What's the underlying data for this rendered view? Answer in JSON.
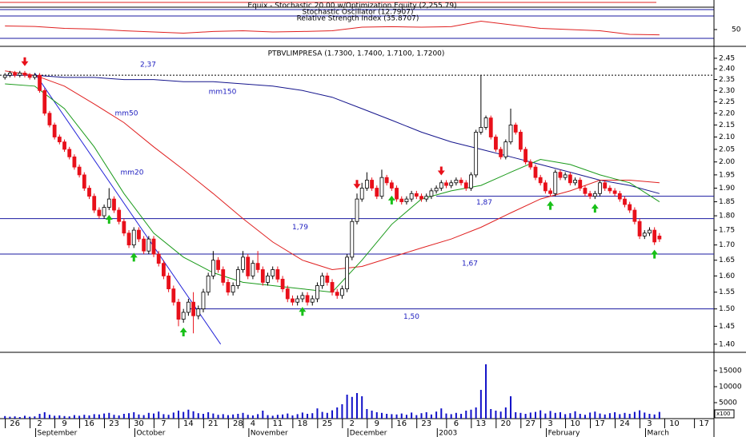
{
  "chart_data": {
    "type": "candlestick",
    "title": "PTBVLIMPRESA (1.7300, 1.7400, 1.7100, 1.7200)",
    "log_scale": true,
    "up_color": "#ffffff",
    "down_color": "#e8101a",
    "ylim": [
      1.38,
      2.5
    ],
    "yticks": [
      {
        "value": 1.4,
        "label": "1.40"
      },
      1.45,
      {
        "value": 1.5,
        "label": "1.50"
      },
      1.55,
      {
        "value": 1.6,
        "label": "1.60"
      },
      1.65,
      {
        "value": 1.7,
        "label": "1.70"
      },
      1.75,
      {
        "value": 1.8,
        "label": "1.80"
      },
      1.85,
      {
        "value": 1.9,
        "label": "1.90"
      },
      1.95,
      {
        "value": 2,
        "label": "2.00"
      },
      2.05,
      {
        "value": 2.1,
        "label": "2.10"
      },
      2.15,
      {
        "value": 2.2,
        "label": "2.20"
      },
      2.25,
      {
        "value": 2.3,
        "label": "2.30"
      },
      2.35,
      {
        "value": 2.4,
        "label": "2.40"
      },
      2.45
    ],
    "xlim": [
      -1,
      143
    ],
    "xticks": [
      {
        "value": 2,
        "label": "26"
      },
      {
        "value": 7,
        "label": "2"
      },
      {
        "value": 12,
        "label": "9"
      },
      {
        "value": 17,
        "label": "16"
      },
      {
        "value": 22,
        "label": "23"
      },
      {
        "value": 27,
        "label": "30"
      },
      {
        "value": 32,
        "label": "7"
      },
      {
        "value": 37,
        "label": "14"
      },
      {
        "value": 42,
        "label": "21"
      },
      {
        "value": 47,
        "label": "28"
      },
      {
        "value": 50,
        "label": "4"
      },
      {
        "value": 55,
        "label": "11"
      },
      {
        "value": 60,
        "label": "18"
      },
      {
        "value": 65,
        "label": "25"
      },
      {
        "value": 70,
        "label": "2"
      },
      {
        "value": 75,
        "label": "9"
      },
      {
        "value": 80,
        "label": "16"
      },
      {
        "value": 85,
        "label": "23"
      },
      {
        "value": 91,
        "label": "6"
      },
      {
        "value": 96,
        "label": "13"
      },
      {
        "value": 101,
        "label": "20"
      },
      {
        "value": 106,
        "label": "27"
      },
      {
        "value": 110,
        "label": "3"
      },
      {
        "value": 115,
        "label": "10"
      },
      {
        "value": 120,
        "label": "17"
      },
      {
        "value": 125,
        "label": "24"
      },
      {
        "value": 130,
        "label": "3"
      },
      {
        "value": 135,
        "label": "10"
      },
      {
        "value": 141,
        "label": "17"
      }
    ],
    "months": [
      {
        "value": 7,
        "label": "September"
      },
      {
        "value": 27,
        "label": "October"
      },
      {
        "value": 50,
        "label": "November"
      },
      {
        "value": 70,
        "label": "December"
      },
      {
        "value": 88,
        "label": "2003"
      },
      {
        "value": 110,
        "label": "February"
      },
      {
        "value": 130,
        "label": "March"
      }
    ],
    "candles": [
      [
        2.36,
        2.38,
        2.35,
        2.37
      ],
      [
        2.37,
        2.39,
        2.36,
        2.38
      ],
      [
        2.38,
        2.39,
        2.36,
        2.37
      ],
      [
        2.37,
        2.39,
        2.36,
        2.38
      ],
      [
        2.38,
        2.39,
        2.36,
        2.37
      ],
      [
        2.37,
        2.38,
        2.35,
        2.36
      ],
      [
        2.36,
        2.38,
        2.35,
        2.37
      ],
      [
        2.37,
        2.38,
        2.29,
        2.3
      ],
      [
        2.3,
        2.31,
        2.19,
        2.2
      ],
      [
        2.2,
        2.21,
        2.14,
        2.15
      ],
      [
        2.15,
        2.16,
        2.09,
        2.1
      ],
      [
        2.1,
        2.11,
        2.07,
        2.08
      ],
      [
        2.08,
        2.09,
        2.04,
        2.05
      ],
      [
        2.05,
        2.06,
        2.01,
        2.02
      ],
      [
        2.02,
        2.03,
        1.97,
        1.98
      ],
      [
        1.98,
        1.99,
        1.94,
        1.95
      ],
      [
        1.95,
        1.96,
        1.89,
        1.9
      ],
      [
        1.9,
        1.91,
        1.86,
        1.87
      ],
      [
        1.87,
        1.88,
        1.81,
        1.82
      ],
      [
        1.82,
        1.83,
        1.79,
        1.8
      ],
      [
        1.8,
        1.84,
        1.79,
        1.83
      ],
      [
        1.83,
        1.9,
        1.82,
        1.86
      ],
      [
        1.86,
        1.87,
        1.81,
        1.82
      ],
      [
        1.82,
        1.83,
        1.77,
        1.78
      ],
      [
        1.78,
        1.79,
        1.73,
        1.74
      ],
      [
        1.74,
        1.75,
        1.69,
        1.7
      ],
      [
        1.7,
        1.76,
        1.69,
        1.75
      ],
      [
        1.75,
        1.76,
        1.71,
        1.72
      ],
      [
        1.72,
        1.73,
        1.67,
        1.68
      ],
      [
        1.68,
        1.73,
        1.67,
        1.72
      ],
      [
        1.72,
        1.73,
        1.66,
        1.67
      ],
      [
        1.67,
        1.68,
        1.63,
        1.64
      ],
      [
        1.64,
        1.65,
        1.59,
        1.6
      ],
      [
        1.6,
        1.61,
        1.55,
        1.56
      ],
      [
        1.56,
        1.57,
        1.51,
        1.52
      ],
      [
        1.52,
        1.53,
        1.45,
        1.47
      ],
      [
        1.47,
        1.5,
        1.46,
        1.49
      ],
      [
        1.49,
        1.53,
        1.48,
        1.52
      ],
      [
        1.52,
        1.55,
        1.43,
        1.48
      ],
      [
        1.48,
        1.51,
        1.47,
        1.5
      ],
      [
        1.5,
        1.56,
        1.49,
        1.55
      ],
      [
        1.55,
        1.61,
        1.54,
        1.6
      ],
      [
        1.6,
        1.68,
        1.59,
        1.65
      ],
      [
        1.65,
        1.66,
        1.61,
        1.62
      ],
      [
        1.62,
        1.63,
        1.57,
        1.58
      ],
      [
        1.58,
        1.59,
        1.54,
        1.55
      ],
      [
        1.55,
        1.58,
        1.54,
        1.57
      ],
      [
        1.57,
        1.63,
        1.56,
        1.62
      ],
      [
        1.62,
        1.68,
        1.61,
        1.66
      ],
      [
        1.66,
        1.67,
        1.59,
        1.6
      ],
      [
        1.6,
        1.65,
        1.59,
        1.64
      ],
      [
        1.64,
        1.68,
        1.61,
        1.62
      ],
      [
        1.62,
        1.63,
        1.57,
        1.58
      ],
      [
        1.58,
        1.61,
        1.57,
        1.6
      ],
      [
        1.6,
        1.63,
        1.59,
        1.62
      ],
      [
        1.62,
        1.63,
        1.58,
        1.59
      ],
      [
        1.59,
        1.6,
        1.55,
        1.56
      ],
      [
        1.56,
        1.57,
        1.52,
        1.53
      ],
      [
        1.53,
        1.54,
        1.51,
        1.52
      ],
      [
        1.52,
        1.54,
        1.51,
        1.53
      ],
      [
        1.53,
        1.55,
        1.52,
        1.54
      ],
      [
        1.54,
        1.55,
        1.51,
        1.52
      ],
      [
        1.52,
        1.54,
        1.51,
        1.53
      ],
      [
        1.53,
        1.58,
        1.52,
        1.57
      ],
      [
        1.57,
        1.61,
        1.56,
        1.6
      ],
      [
        1.6,
        1.61,
        1.57,
        1.58
      ],
      [
        1.58,
        1.59,
        1.54,
        1.55
      ],
      [
        1.55,
        1.56,
        1.53,
        1.54
      ],
      [
        1.54,
        1.57,
        1.53,
        1.56
      ],
      [
        1.56,
        1.67,
        1.55,
        1.66
      ],
      [
        1.66,
        1.79,
        1.65,
        1.78
      ],
      [
        1.78,
        1.88,
        1.77,
        1.86
      ],
      [
        1.86,
        1.92,
        1.85,
        1.9
      ],
      [
        1.9,
        1.96,
        1.89,
        1.93
      ],
      [
        1.93,
        1.94,
        1.89,
        1.9
      ],
      [
        1.9,
        1.91,
        1.86,
        1.87
      ],
      [
        1.87,
        1.97,
        1.86,
        1.94
      ],
      [
        1.94,
        1.95,
        1.91,
        1.92
      ],
      [
        1.92,
        1.93,
        1.89,
        1.9
      ],
      [
        1.9,
        1.91,
        1.85,
        1.86
      ],
      [
        1.86,
        1.87,
        1.84,
        1.85
      ],
      [
        1.85,
        1.87,
        1.84,
        1.86
      ],
      [
        1.86,
        1.89,
        1.85,
        1.88
      ],
      [
        1.88,
        1.89,
        1.86,
        1.87
      ],
      [
        1.87,
        1.88,
        1.85,
        1.86
      ],
      [
        1.86,
        1.88,
        1.85,
        1.87
      ],
      [
        1.87,
        1.9,
        1.86,
        1.89
      ],
      [
        1.89,
        1.91,
        1.88,
        1.9
      ],
      [
        1.9,
        1.93,
        1.89,
        1.92
      ],
      [
        1.92,
        1.93,
        1.9,
        1.91
      ],
      [
        1.91,
        1.93,
        1.9,
        1.92
      ],
      [
        1.92,
        1.94,
        1.91,
        1.93
      ],
      [
        1.93,
        1.94,
        1.91,
        1.92
      ],
      [
        1.92,
        1.93,
        1.89,
        1.9
      ],
      [
        1.9,
        1.96,
        1.89,
        1.95
      ],
      [
        1.95,
        2.13,
        1.94,
        2.12
      ],
      [
        2.12,
        2.37,
        2.11,
        2.14
      ],
      [
        2.14,
        2.19,
        2.13,
        2.18
      ],
      [
        2.18,
        2.19,
        2.09,
        2.1
      ],
      [
        2.1,
        2.11,
        2.04,
        2.05
      ],
      [
        2.05,
        2.06,
        2.01,
        2.02
      ],
      [
        2.02,
        2.09,
        2.01,
        2.08
      ],
      [
        2.08,
        2.22,
        2.07,
        2.15
      ],
      [
        2.15,
        2.16,
        2.11,
        2.12
      ],
      [
        2.12,
        2.13,
        2.04,
        2.05
      ],
      [
        2.05,
        2.06,
        1.99,
        2.0
      ],
      [
        2.0,
        2.01,
        1.97,
        1.98
      ],
      [
        1.98,
        1.99,
        1.93,
        1.94
      ],
      [
        1.94,
        1.95,
        1.91,
        1.92
      ],
      [
        1.92,
        1.93,
        1.88,
        1.89
      ],
      [
        1.89,
        1.9,
        1.87,
        1.88
      ],
      [
        1.88,
        1.97,
        1.87,
        1.96
      ],
      [
        1.96,
        1.97,
        1.93,
        1.94
      ],
      [
        1.94,
        1.96,
        1.93,
        1.95
      ],
      [
        1.95,
        1.96,
        1.91,
        1.92
      ],
      [
        1.92,
        1.94,
        1.91,
        1.93
      ],
      [
        1.93,
        1.94,
        1.89,
        1.9
      ],
      [
        1.9,
        1.91,
        1.87,
        1.88
      ],
      [
        1.88,
        1.89,
        1.86,
        1.87
      ],
      [
        1.87,
        1.89,
        1.86,
        1.88
      ],
      [
        1.88,
        1.93,
        1.87,
        1.92
      ],
      [
        1.92,
        1.93,
        1.89,
        1.9
      ],
      [
        1.9,
        1.91,
        1.88,
        1.89
      ],
      [
        1.89,
        1.9,
        1.87,
        1.88
      ],
      [
        1.88,
        1.89,
        1.85,
        1.86
      ],
      [
        1.86,
        1.87,
        1.83,
        1.84
      ],
      [
        1.84,
        1.85,
        1.81,
        1.82
      ],
      [
        1.82,
        1.83,
        1.77,
        1.78
      ],
      [
        1.78,
        1.79,
        1.72,
        1.73
      ],
      [
        1.73,
        1.75,
        1.72,
        1.74
      ],
      [
        1.74,
        1.76,
        1.73,
        1.75
      ],
      [
        1.75,
        1.76,
        1.7,
        1.71
      ],
      [
        1.73,
        1.74,
        1.71,
        1.72
      ]
    ],
    "ma_x": [
      0,
      6,
      12,
      18,
      24,
      30,
      36,
      42,
      48,
      54,
      60,
      66,
      72,
      78,
      84,
      90,
      96,
      102,
      108,
      114,
      120,
      126,
      132
    ],
    "ma_series": [
      {
        "name": "mm150",
        "color": "#14148c",
        "values": [
          2.37,
          2.37,
          2.36,
          2.36,
          2.35,
          2.35,
          2.34,
          2.34,
          2.33,
          2.32,
          2.3,
          2.27,
          2.22,
          2.17,
          2.12,
          2.08,
          2.05,
          2.02,
          1.99,
          1.96,
          1.93,
          1.91,
          1.88
        ]
      },
      {
        "name": "mm50",
        "color": "#e02020",
        "values": [
          2.39,
          2.37,
          2.32,
          2.24,
          2.16,
          2.06,
          1.97,
          1.88,
          1.79,
          1.71,
          1.65,
          1.62,
          1.63,
          1.66,
          1.69,
          1.72,
          1.76,
          1.81,
          1.86,
          1.89,
          1.93,
          1.93,
          1.92
        ]
      },
      {
        "name": "mm20",
        "color": "#1a9a1a",
        "values": [
          2.33,
          2.32,
          2.22,
          2.06,
          1.88,
          1.74,
          1.66,
          1.61,
          1.58,
          1.57,
          1.56,
          1.55,
          1.65,
          1.77,
          1.86,
          1.89,
          1.91,
          1.96,
          2.01,
          1.99,
          1.95,
          1.92,
          1.85
        ]
      }
    ],
    "trendline": {
      "color": "#2323d8",
      "x": [
        6,
        43.5
      ],
      "values": [
        2.38,
        1.4
      ]
    },
    "levels": [
      {
        "value": 2.37,
        "label": "2,37",
        "dotted": true
      },
      {
        "value": 1.87,
        "label": "1,87",
        "start": 87
      },
      {
        "value": 1.79,
        "label": "1,79"
      },
      {
        "value": 1.67,
        "label": "1,67"
      },
      {
        "value": 1.5,
        "label": "1,50",
        "start": 37
      }
    ],
    "level_color": "#1a1aa0",
    "sell_signals": [
      4,
      71,
      88
    ],
    "buy_signals": [
      21,
      26,
      36,
      60,
      78,
      110,
      119,
      131
    ],
    "volume": {
      "color": "#1010c8",
      "unit_label": "x100",
      "ylim": [
        0,
        20500
      ],
      "yticks": [
        5000,
        10000,
        15000
      ],
      "values": [
        800,
        600,
        700,
        500,
        900,
        600,
        700,
        1500,
        2000,
        1200,
        900,
        1000,
        800,
        700,
        1100,
        900,
        1200,
        1000,
        1400,
        1300,
        1600,
        1800,
        1200,
        1000,
        1500,
        1700,
        2000,
        1300,
        1100,
        1800,
        1600,
        2200,
        1400,
        1200,
        1900,
        2500,
        2100,
        2800,
        2300,
        1700,
        1500,
        2000,
        1600,
        1200,
        1400,
        1100,
        1300,
        1500,
        1800,
        1200,
        1000,
        1400,
        2500,
        1100,
        900,
        1200,
        1300,
        1600,
        1000,
        1400,
        1900,
        1500,
        1700,
        3200,
        2100,
        1800,
        2600,
        3500,
        4500,
        7500,
        6800,
        8000,
        7000,
        3000,
        2500,
        2000,
        1800,
        1500,
        1400,
        1300,
        1600,
        1200,
        1900,
        1100,
        1700,
        2000,
        1300,
        2200,
        3200,
        1600,
        1400,
        1800,
        1500,
        2500,
        2800,
        3500,
        9000,
        17000,
        3000,
        2500,
        2200,
        3500,
        7000,
        2000,
        1800,
        1500,
        1900,
        2100,
        2600,
        1600,
        2400,
        1800,
        2000,
        1400,
        1700,
        2300,
        1500,
        1200,
        1900,
        2200,
        1600,
        1300,
        1700,
        2000,
        1400,
        1800,
        1500,
        2100,
        2600,
        1900,
        1500,
        1300,
        2100
      ]
    },
    "indicator": {
      "titles": [
        "Equix - Stochastic 20.00 w/Optimization Equity (2,255.79)",
        "Stochastic Oscillator (12.7907)",
        "Relative Strength Index (35.8707)"
      ],
      "color": "#e02020",
      "ylim": [
        0,
        100
      ],
      "yticks": [
        50
      ],
      "values": [
        65,
        63,
        55,
        52,
        45,
        40,
        35,
        42,
        45,
        40,
        42,
        45,
        60,
        62,
        60,
        62,
        85,
        70,
        55,
        50,
        45,
        30,
        28
      ]
    }
  }
}
